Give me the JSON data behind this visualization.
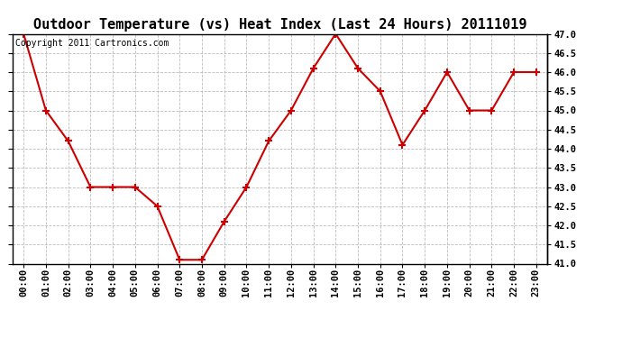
{
  "title": "Outdoor Temperature (vs) Heat Index (Last 24 Hours) 20111019",
  "copyright": "Copyright 2011 Cartronics.com",
  "hours": [
    "00:00",
    "01:00",
    "02:00",
    "03:00",
    "04:00",
    "05:00",
    "06:00",
    "07:00",
    "08:00",
    "09:00",
    "10:00",
    "11:00",
    "12:00",
    "13:00",
    "14:00",
    "15:00",
    "16:00",
    "17:00",
    "18:00",
    "19:00",
    "20:00",
    "21:00",
    "22:00",
    "23:00"
  ],
  "values": [
    47.0,
    45.0,
    44.2,
    43.0,
    43.0,
    43.0,
    42.5,
    41.1,
    41.1,
    42.1,
    43.0,
    44.2,
    45.0,
    46.1,
    47.0,
    46.1,
    45.5,
    44.1,
    45.0,
    46.0,
    45.0,
    45.0,
    46.0,
    46.0
  ],
  "line_color": "#cc0000",
  "marker": "+",
  "marker_size": 6,
  "marker_linewidth": 1.5,
  "line_width": 1.5,
  "bg_color": "#ffffff",
  "plot_bg_color": "#ffffff",
  "grid_color": "#bbbbbb",
  "ylim": [
    41.0,
    47.0
  ],
  "ytick_step": 0.5,
  "title_fontsize": 11,
  "tick_fontsize": 7.5,
  "copyright_fontsize": 7
}
